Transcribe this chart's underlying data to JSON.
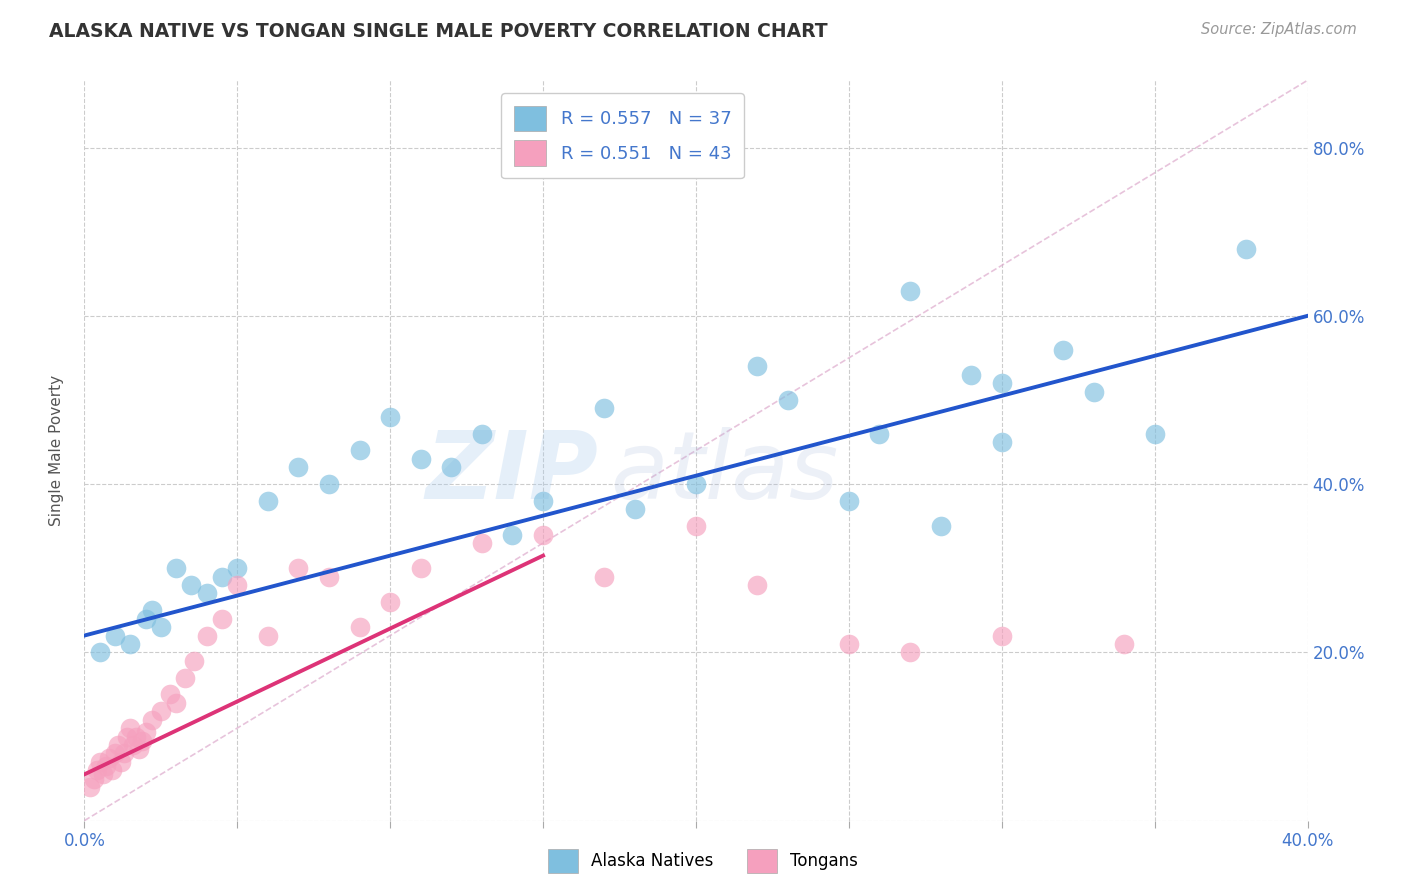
{
  "title": "ALASKA NATIVE VS TONGAN SINGLE MALE POVERTY CORRELATION CHART",
  "source_text": "Source: ZipAtlas.com",
  "ylabel": "Single Male Poverty",
  "xlim": [
    0.0,
    0.4
  ],
  "ylim": [
    0.0,
    0.88
  ],
  "xticks": [
    0.0,
    0.05,
    0.1,
    0.15,
    0.2,
    0.25,
    0.3,
    0.35,
    0.4
  ],
  "ytick_positions": [
    0.0,
    0.2,
    0.4,
    0.6,
    0.8
  ],
  "ytick_labels": [
    "",
    "20.0%",
    "40.0%",
    "60.0%",
    "80.0%"
  ],
  "blue_scatter_color": "#7fbfdf",
  "pink_scatter_color": "#f5a0be",
  "blue_line_color": "#2255cc",
  "pink_line_color": "#dd3377",
  "ref_line_color": "#cccccc",
  "legend1_text": "R = 0.557   N = 37",
  "legend2_text": "R = 0.551   N = 43",
  "legend_label1": "Alaska Natives",
  "legend_label2": "Tongans",
  "watermark_text": "ZIP",
  "watermark_text2": "atlas",
  "background_color": "#ffffff",
  "grid_color": "#cccccc",
  "blue_line_x0": 0.0,
  "blue_line_y0": 0.22,
  "blue_line_x1": 0.4,
  "blue_line_y1": 0.6,
  "pink_line_x0": 0.0,
  "pink_line_y0": 0.055,
  "pink_line_x1": 0.15,
  "pink_line_y1": 0.315,
  "alaska_x": [
    0.005,
    0.01,
    0.015,
    0.02,
    0.022,
    0.025,
    0.03,
    0.035,
    0.04,
    0.045,
    0.05,
    0.06,
    0.07,
    0.08,
    0.09,
    0.1,
    0.11,
    0.12,
    0.13,
    0.14,
    0.15,
    0.17,
    0.2,
    0.22,
    0.25,
    0.28,
    0.3,
    0.32,
    0.35,
    0.38,
    0.27,
    0.3,
    0.33,
    0.18,
    0.23,
    0.26,
    0.29
  ],
  "alaska_y": [
    0.2,
    0.22,
    0.21,
    0.24,
    0.25,
    0.23,
    0.3,
    0.28,
    0.27,
    0.29,
    0.3,
    0.38,
    0.42,
    0.4,
    0.44,
    0.48,
    0.43,
    0.42,
    0.46,
    0.34,
    0.38,
    0.49,
    0.4,
    0.54,
    0.38,
    0.35,
    0.45,
    0.56,
    0.46,
    0.68,
    0.63,
    0.52,
    0.51,
    0.37,
    0.5,
    0.46,
    0.53
  ],
  "tongan_x": [
    0.002,
    0.003,
    0.004,
    0.005,
    0.006,
    0.007,
    0.008,
    0.009,
    0.01,
    0.011,
    0.012,
    0.013,
    0.014,
    0.015,
    0.016,
    0.017,
    0.018,
    0.019,
    0.02,
    0.022,
    0.025,
    0.028,
    0.03,
    0.033,
    0.036,
    0.04,
    0.045,
    0.05,
    0.06,
    0.07,
    0.08,
    0.09,
    0.1,
    0.11,
    0.13,
    0.15,
    0.17,
    0.2,
    0.22,
    0.25,
    0.27,
    0.3,
    0.34
  ],
  "tongan_y": [
    0.04,
    0.05,
    0.06,
    0.07,
    0.055,
    0.065,
    0.075,
    0.06,
    0.08,
    0.09,
    0.07,
    0.08,
    0.1,
    0.11,
    0.09,
    0.1,
    0.085,
    0.095,
    0.105,
    0.12,
    0.13,
    0.15,
    0.14,
    0.17,
    0.19,
    0.22,
    0.24,
    0.28,
    0.22,
    0.3,
    0.29,
    0.23,
    0.26,
    0.3,
    0.33,
    0.34,
    0.29,
    0.35,
    0.28,
    0.21,
    0.2,
    0.22,
    0.21
  ]
}
